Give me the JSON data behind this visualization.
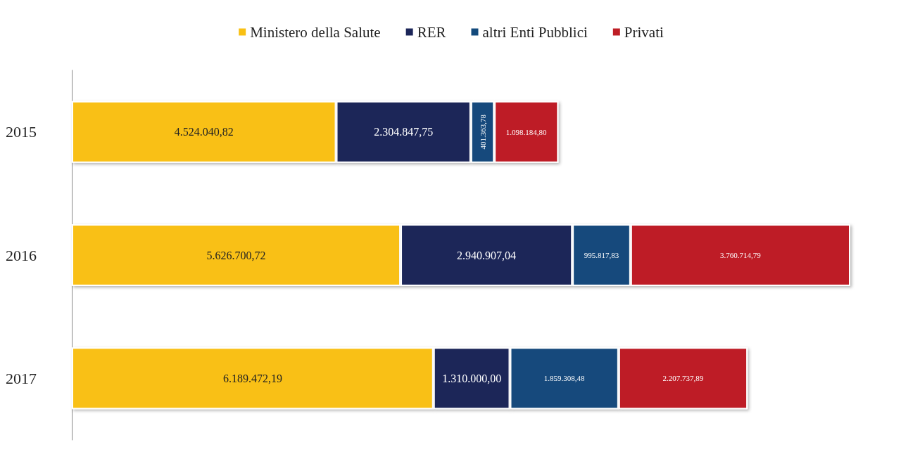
{
  "chart_data": {
    "type": "bar",
    "orientation": "horizontal",
    "stacked": true,
    "tick_labels": "y",
    "legend": "top",
    "categories": [
      "2015",
      "2016",
      "2017"
    ],
    "series": [
      {
        "name": "Ministero della Salute",
        "color": "#f9c013",
        "values": [
          4524040.82,
          5626700.72,
          6189472.19
        ],
        "value_labels": [
          "4.524.040,82",
          "5.626.700,72",
          "6.189.472,19"
        ]
      },
      {
        "name": "RER",
        "color": "#1c2659",
        "values": [
          2304847.75,
          2940907.04,
          1310000.0
        ],
        "value_labels": [
          "2.304.847,75",
          "2.940.907,04",
          "1.310.000,00"
        ]
      },
      {
        "name": "altri Enti Pubblici",
        "color": "#134a7c",
        "values": [
          401363.78,
          995817.83,
          1859308.48
        ],
        "value_labels": [
          "401.363,78",
          "995.817,83",
          "1.859.308,48"
        ]
      },
      {
        "name": "Privati",
        "color": "#be1e25",
        "values": [
          1098184.8,
          3760714.79,
          2207737.89
        ],
        "value_labels": [
          "1.098.184,80",
          "3.760.714,79",
          "2.207.737,89"
        ]
      }
    ]
  }
}
